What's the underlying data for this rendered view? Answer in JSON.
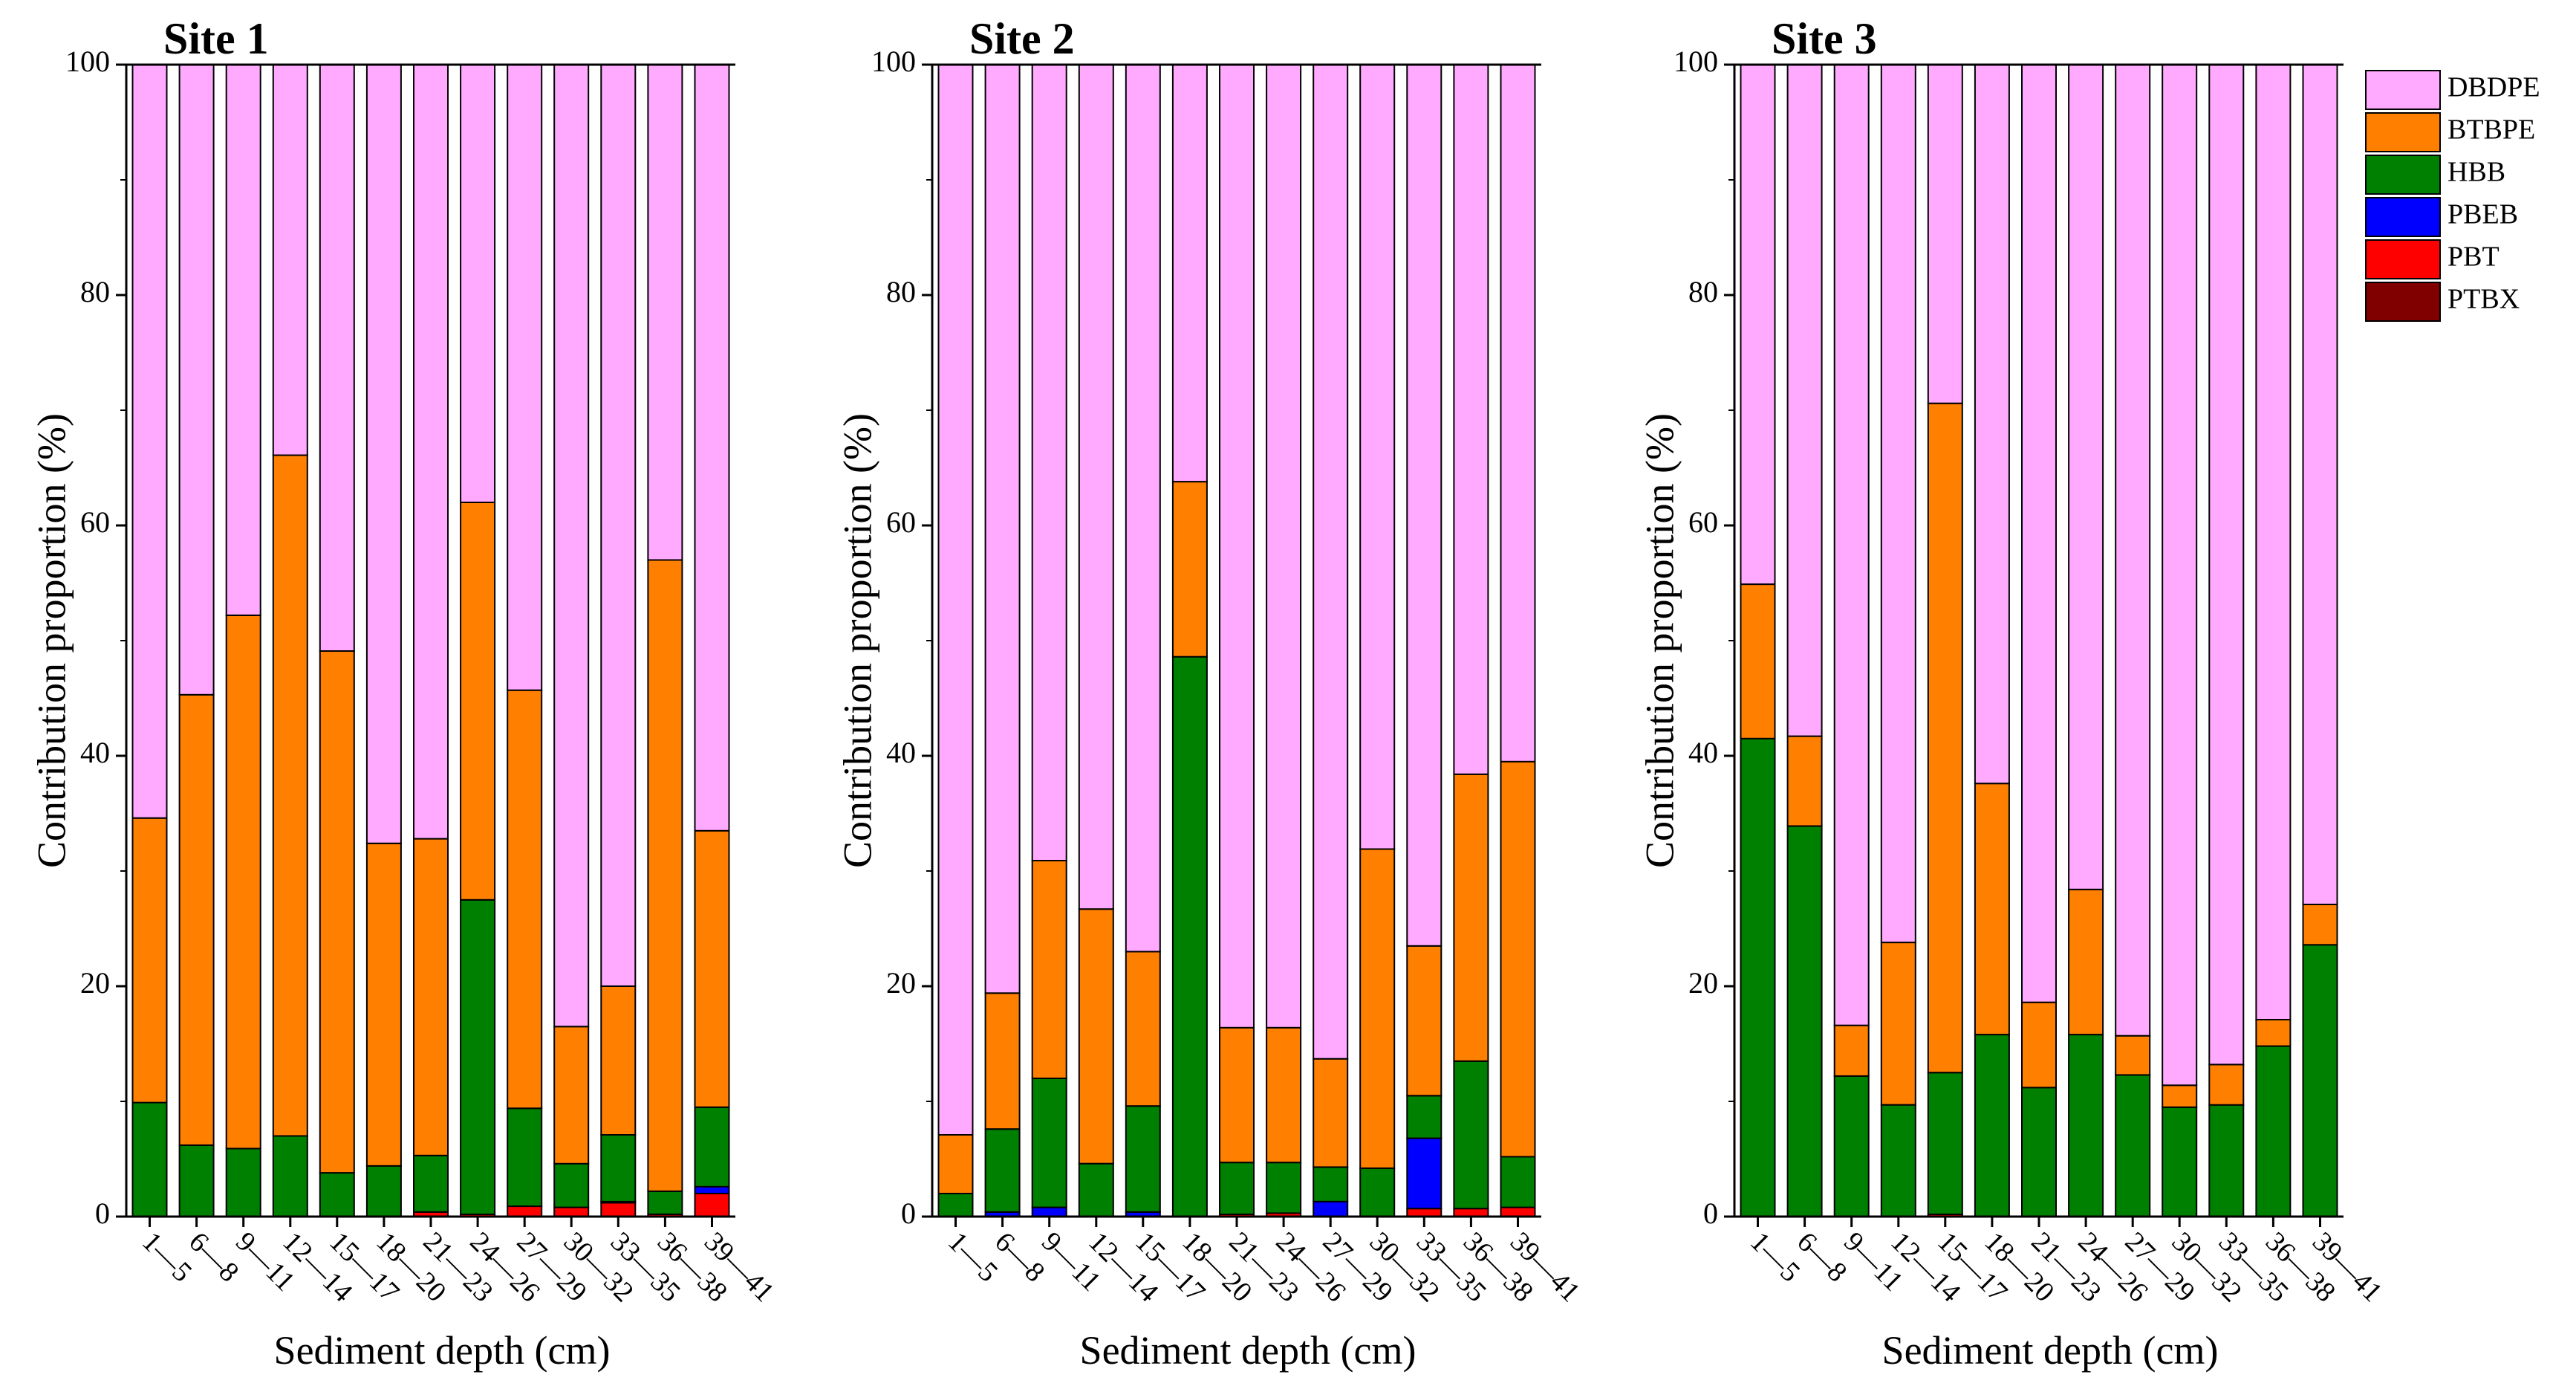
{
  "legend": [
    {
      "name": "DBDPE",
      "color": "#FFAAFF"
    },
    {
      "name": "BTBPE",
      "color": "#FF8000"
    },
    {
      "name": "HBB",
      "color": "#008000"
    },
    {
      "name": "PBEB",
      "color": "#0000FF"
    },
    {
      "name": "PBT",
      "color": "#FF0000"
    },
    {
      "name": "PTBX",
      "color": "#800000"
    }
  ],
  "chart_data": [
    {
      "type": "bar",
      "stacked": true,
      "title": "Site 1",
      "xlabel": "Sediment depth (cm)",
      "ylabel": "Contribution proportion (%)",
      "ylim": [
        0,
        100
      ],
      "yticks": [
        0,
        20,
        40,
        60,
        80,
        100
      ],
      "categories": [
        "1—5",
        "6—8",
        "9—11",
        "12—14",
        "15—17",
        "18—20",
        "21—23",
        "24—26",
        "27—29",
        "30—32",
        "33—35",
        "36—38",
        "39—41"
      ],
      "series": [
        {
          "name": "PTBX",
          "values": [
            0,
            0,
            0,
            0,
            0,
            0,
            0,
            0,
            0,
            0,
            0,
            0,
            0
          ]
        },
        {
          "name": "PBT",
          "values": [
            0,
            0,
            0,
            0,
            0,
            0,
            0.4,
            0.2,
            0.9,
            0.8,
            1.2,
            0.2,
            2.0
          ]
        },
        {
          "name": "PBEB",
          "values": [
            0,
            0,
            0,
            0,
            0,
            0,
            0,
            0,
            0,
            0,
            0.1,
            0,
            0.6
          ]
        },
        {
          "name": "HBB",
          "values": [
            9.9,
            6.2,
            5.9,
            7.0,
            3.8,
            4.4,
            4.9,
            27.3,
            8.5,
            3.8,
            5.8,
            2.0,
            6.9
          ]
        },
        {
          "name": "BTBPE",
          "values": [
            24.7,
            39.1,
            46.3,
            59.1,
            45.3,
            28.0,
            27.5,
            34.5,
            36.3,
            11.9,
            12.9,
            54.8,
            24.0
          ]
        },
        {
          "name": "DBDPE",
          "values": [
            65.4,
            54.7,
            47.8,
            33.9,
            50.9,
            67.6,
            67.2,
            38.0,
            54.3,
            83.5,
            80.0,
            43.0,
            66.5
          ]
        }
      ]
    },
    {
      "type": "bar",
      "stacked": true,
      "title": "Site 2",
      "xlabel": "Sediment depth (cm)",
      "ylabel": "Contribution proportion (%)",
      "ylim": [
        0,
        100
      ],
      "yticks": [
        0,
        20,
        40,
        60,
        80,
        100
      ],
      "categories": [
        "1—5",
        "6—8",
        "9—11",
        "12—14",
        "15—17",
        "18—20",
        "21—23",
        "24—26",
        "27—29",
        "30—32",
        "33—35",
        "36—38",
        "39—41"
      ],
      "series": [
        {
          "name": "PTBX",
          "values": [
            0,
            0,
            0,
            0,
            0,
            0,
            0,
            0,
            0,
            0,
            0,
            0,
            0
          ]
        },
        {
          "name": "PBT",
          "values": [
            0,
            0,
            0,
            0,
            0,
            0,
            0.2,
            0.3,
            0,
            0,
            0.7,
            0.7,
            0.8
          ]
        },
        {
          "name": "PBEB",
          "values": [
            0,
            0.4,
            0.8,
            0,
            0.4,
            0,
            0,
            0,
            1.3,
            0,
            6.1,
            0,
            0
          ]
        },
        {
          "name": "HBB",
          "values": [
            2.0,
            7.2,
            11.2,
            4.6,
            9.2,
            48.6,
            4.5,
            4.4,
            3.0,
            4.2,
            3.7,
            12.8,
            4.4
          ]
        },
        {
          "name": "BTBPE",
          "values": [
            5.1,
            11.8,
            18.9,
            22.1,
            13.4,
            15.2,
            11.7,
            11.7,
            9.4,
            27.7,
            13.0,
            24.9,
            34.3
          ]
        },
        {
          "name": "DBDPE",
          "values": [
            92.9,
            80.6,
            69.1,
            73.3,
            77.0,
            36.2,
            83.6,
            83.6,
            86.3,
            68.1,
            76.5,
            61.6,
            60.5
          ]
        }
      ]
    },
    {
      "type": "bar",
      "stacked": true,
      "title": "Site 3",
      "xlabel": "Sediment depth (cm)",
      "ylabel": "Contribution proportion (%)",
      "ylim": [
        0,
        100
      ],
      "yticks": [
        0,
        20,
        40,
        60,
        80,
        100
      ],
      "categories": [
        "1—5",
        "6—8",
        "9—11",
        "12—14",
        "15—17",
        "18—20",
        "21—23",
        "24—26",
        "27—29",
        "30—32",
        "33—35",
        "36—38",
        "39—41"
      ],
      "series": [
        {
          "name": "PTBX",
          "values": [
            0,
            0,
            0,
            0,
            0,
            0,
            0,
            0,
            0,
            0,
            0,
            0,
            0
          ]
        },
        {
          "name": "PBT",
          "values": [
            0,
            0,
            0,
            0,
            0.2,
            0,
            0,
            0,
            0,
            0,
            0,
            0,
            0
          ]
        },
        {
          "name": "PBEB",
          "values": [
            0,
            0,
            0,
            0,
            0,
            0,
            0,
            0,
            0,
            0,
            0,
            0,
            0
          ]
        },
        {
          "name": "HBB",
          "values": [
            41.5,
            33.9,
            12.2,
            9.7,
            12.3,
            15.8,
            11.2,
            15.8,
            12.3,
            9.5,
            9.7,
            14.8,
            23.6
          ]
        },
        {
          "name": "BTBPE",
          "values": [
            13.4,
            7.8,
            4.4,
            14.1,
            58.1,
            21.8,
            7.4,
            12.6,
            3.4,
            1.9,
            3.5,
            2.3,
            3.5
          ]
        },
        {
          "name": "DBDPE",
          "values": [
            45.1,
            58.3,
            83.4,
            76.2,
            29.4,
            62.4,
            81.4,
            71.6,
            84.3,
            88.6,
            86.8,
            82.9,
            72.9
          ]
        }
      ]
    }
  ]
}
